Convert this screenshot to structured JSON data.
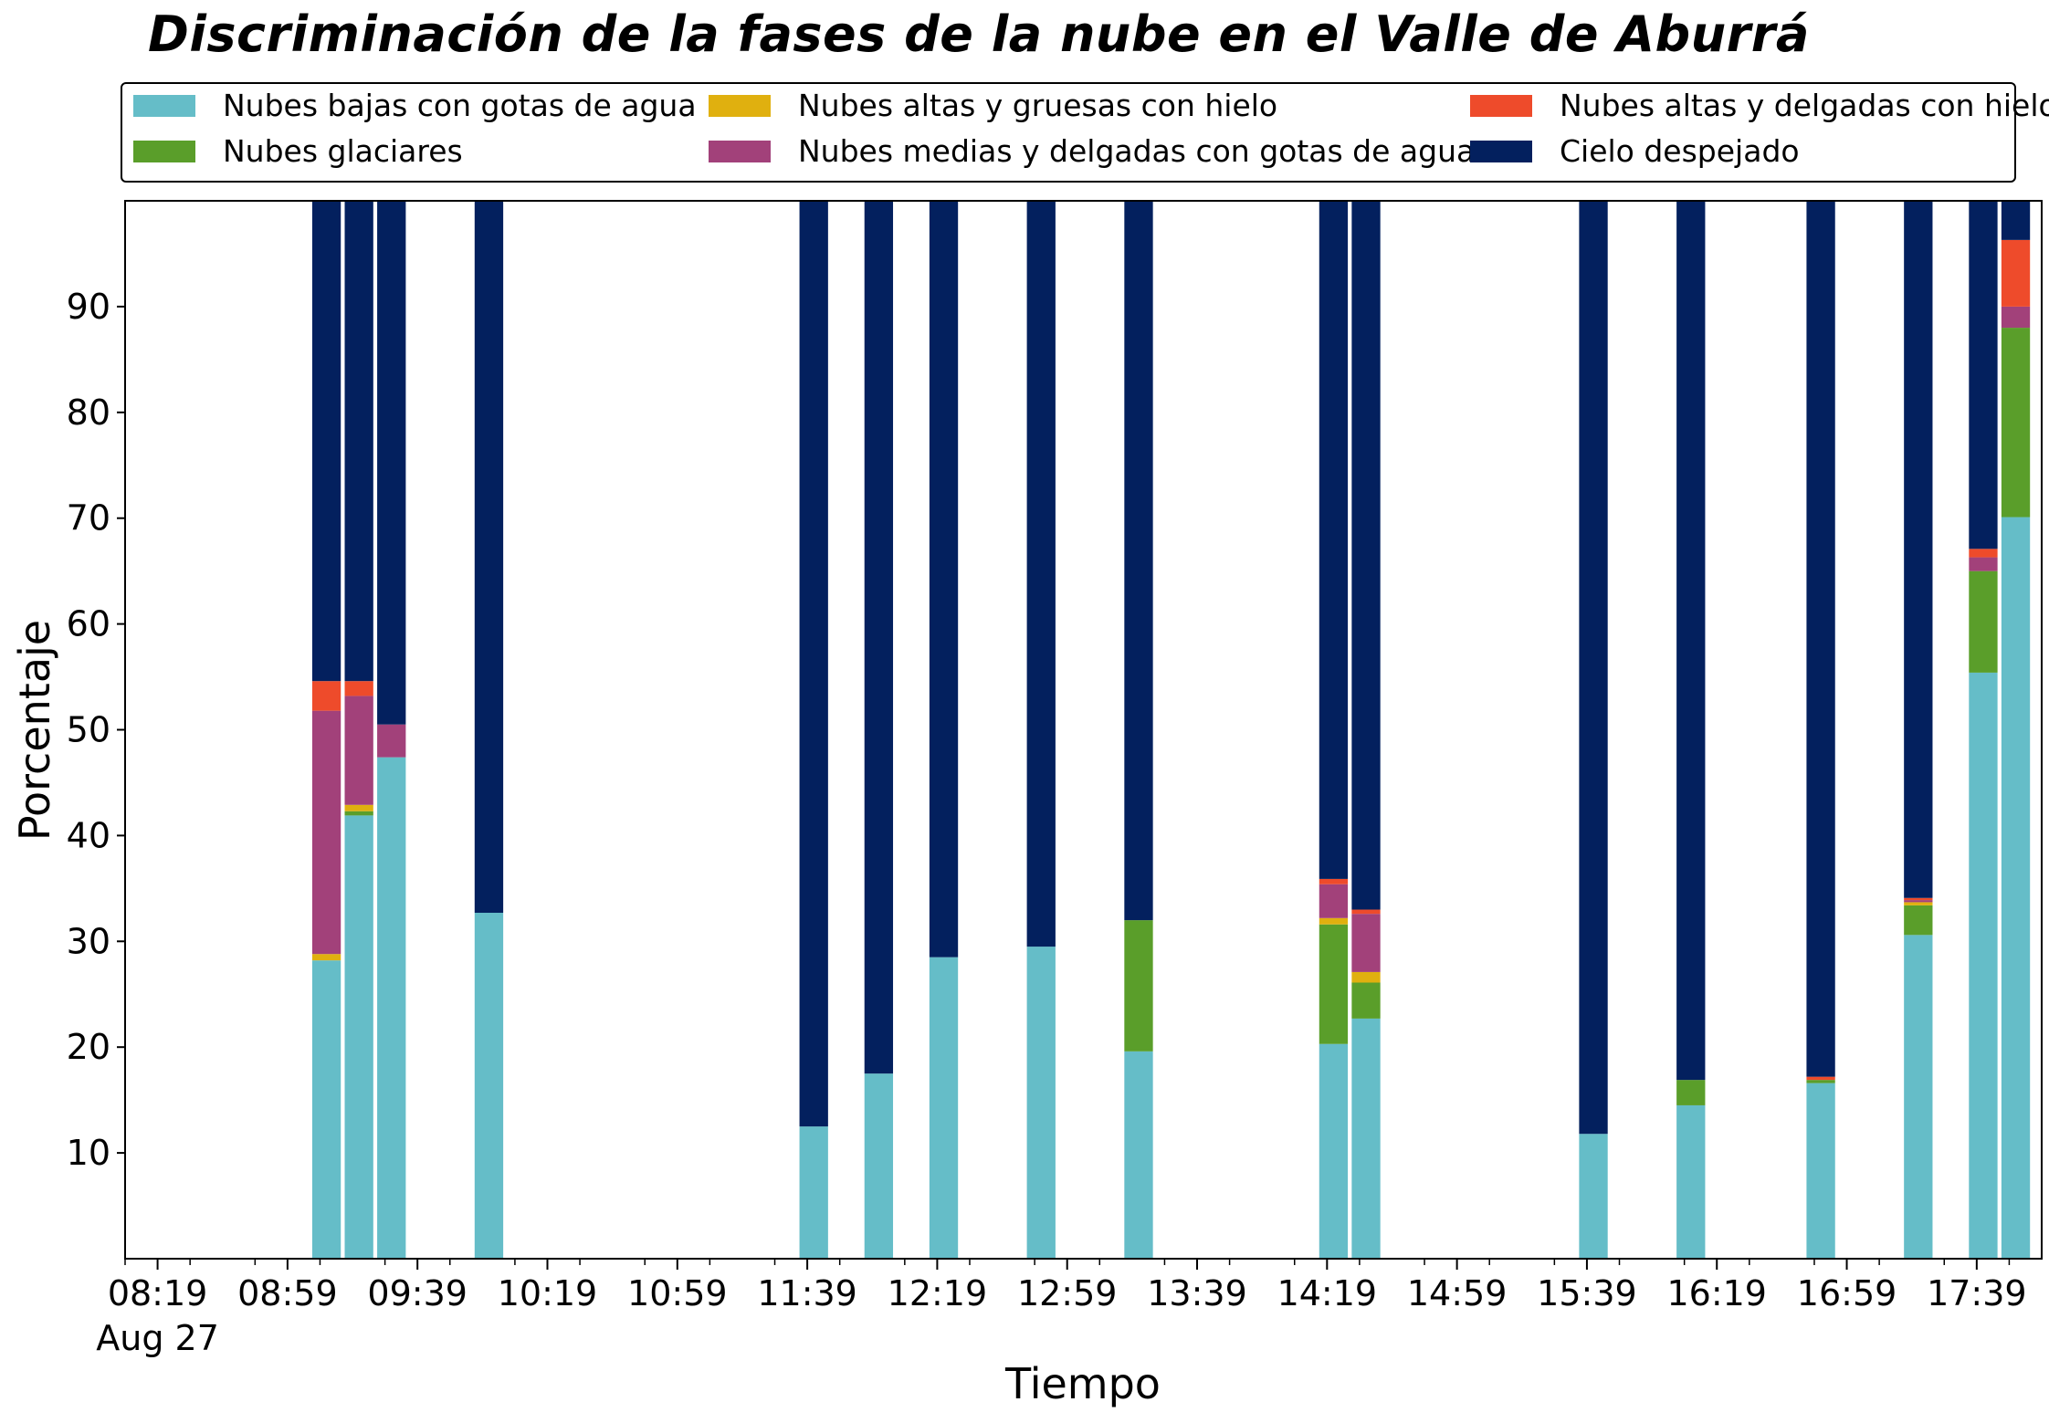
{
  "chart_data": {
    "type": "bar",
    "stacked": true,
    "title": "Discriminación de la fases de la nube en el Valle de Aburrá",
    "xlabel": "Tiempo",
    "ylabel": "Porcentaje",
    "ylim": [
      0,
      100
    ],
    "yticks": [
      10,
      20,
      30,
      40,
      50,
      60,
      70,
      80,
      90
    ],
    "x_tick_labels": [
      "08:19",
      "08:59",
      "09:39",
      "10:19",
      "10:59",
      "11:39",
      "12:19",
      "12:59",
      "13:39",
      "14:19",
      "14:59",
      "15:39",
      "16:19",
      "16:59",
      "17:39"
    ],
    "x_tick_sublabel": "Aug 27",
    "legend_position": "top, above plot, 3 columns",
    "times": [
      "09:11",
      "09:21",
      "09:31",
      "10:01",
      "11:41",
      "12:01",
      "12:21",
      "12:51",
      "13:21",
      "14:21",
      "14:31",
      "15:41",
      "16:11",
      "16:51",
      "17:21",
      "17:41",
      "17:51"
    ],
    "series": [
      {
        "name": "Nubes bajas con gotas de agua",
        "color": "#65BDC8",
        "values": [
          28.2,
          41.9,
          47.4,
          32.7,
          12.5,
          17.5,
          28.5,
          29.5,
          19.6,
          20.3,
          22.7,
          11.8,
          14.5,
          16.6,
          30.6,
          55.4,
          70.1
        ]
      },
      {
        "name": "Nubes glaciares",
        "color": "#5A9E2A",
        "values": [
          0,
          0.4,
          0,
          0,
          0,
          0,
          0,
          0,
          12.4,
          11.3,
          3.4,
          0,
          2.4,
          0.3,
          2.8,
          9.6,
          17.9
        ]
      },
      {
        "name": "Nubes altas y gruesas con hielo",
        "color": "#E0B00F",
        "values": [
          0.6,
          0.6,
          0,
          0,
          0,
          0,
          0,
          0,
          0,
          0.6,
          1.0,
          0,
          0,
          0,
          0.3,
          0,
          0
        ]
      },
      {
        "name": "Nubes medias y delgadas con gotas de agua",
        "color": "#A2417A",
        "values": [
          23.0,
          10.3,
          3.1,
          0,
          0,
          0,
          0,
          0,
          0,
          3.2,
          5.5,
          0,
          0,
          0,
          0.2,
          1.3,
          2.0
        ]
      },
      {
        "name": "Nubes altas y delgadas con hielo",
        "color": "#EE4B2B",
        "values": [
          2.8,
          1.4,
          0,
          0,
          0,
          0,
          0,
          0,
          0,
          0.5,
          0.4,
          0,
          0,
          0.3,
          0.2,
          0.8,
          6.3
        ]
      },
      {
        "name": "Cielo despejado",
        "color": "#03205E",
        "values": [
          45.4,
          45.4,
          49.5,
          67.3,
          87.5,
          82.5,
          71.5,
          70.5,
          68.0,
          64.1,
          67.0,
          88.2,
          83.1,
          82.8,
          65.9,
          32.9,
          3.7
        ]
      }
    ]
  }
}
